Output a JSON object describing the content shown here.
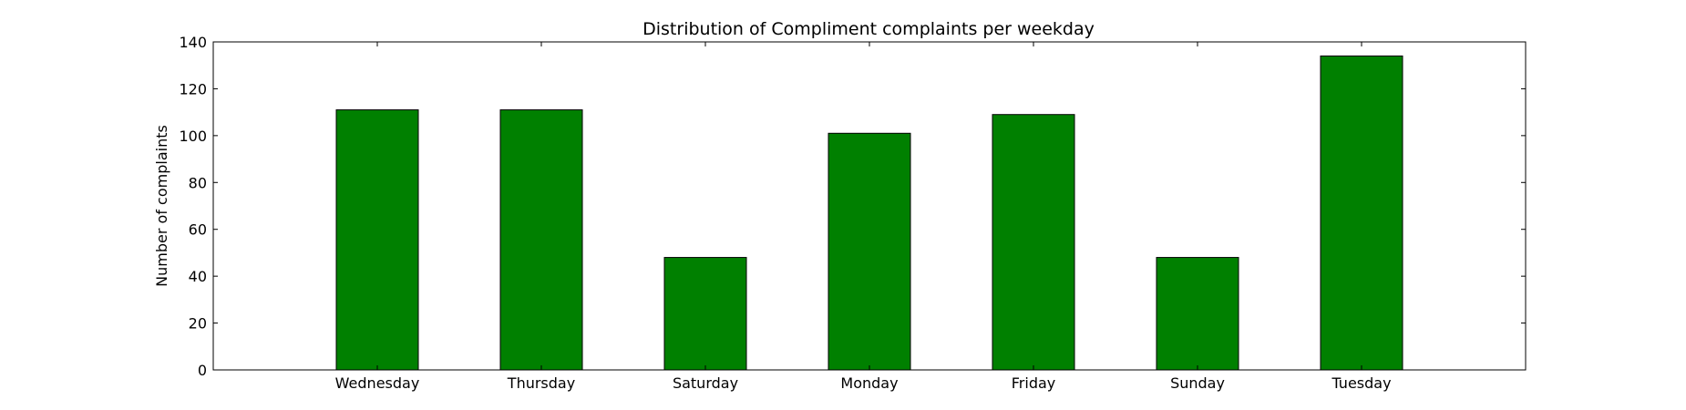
{
  "chart_data": {
    "type": "bar",
    "title": "Distribution of  Compliment complaints per weekday",
    "xlabel": "",
    "ylabel": "Number of complaints",
    "categories": [
      "Wednesday",
      "Thursday",
      "Saturday",
      "Monday",
      "Friday",
      "Sunday",
      "Tuesday"
    ],
    "values": [
      111,
      111,
      48,
      101,
      109,
      48,
      134
    ],
    "ylim": [
      0,
      140
    ],
    "yticks": [
      0,
      20,
      40,
      60,
      80,
      100,
      120,
      140
    ],
    "grid": false,
    "legend": "none",
    "colors": {
      "bar_fill": "#008000",
      "bar_edge": "#000000",
      "axes": "#000000",
      "background": "#ffffff"
    }
  }
}
